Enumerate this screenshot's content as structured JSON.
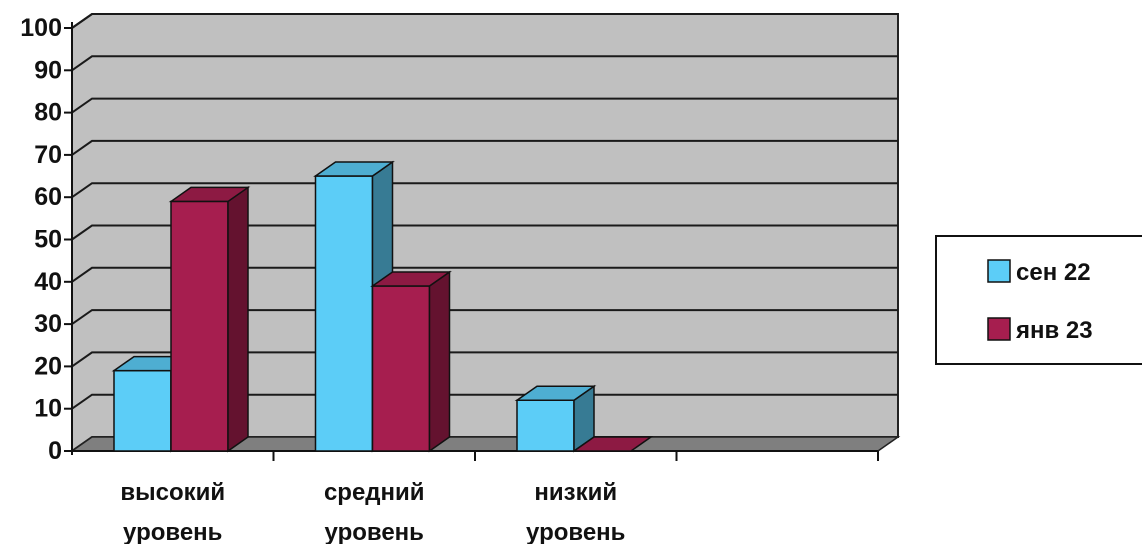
{
  "chart_data": {
    "type": "bar",
    "categories": [
      [
        "высокий",
        "уровень"
      ],
      [
        "средний",
        "уровень"
      ],
      [
        "низкий",
        "уровень"
      ],
      [
        "",
        ""
      ]
    ],
    "series": [
      {
        "name": "сен 22",
        "values": [
          19,
          65,
          12,
          null
        ],
        "color": "#5ccdf7"
      },
      {
        "name": "янв 23",
        "values": [
          59,
          39,
          0,
          null
        ],
        "color": "#a61e4f"
      }
    ],
    "yticks": [
      "0",
      "10",
      "20",
      "30",
      "40",
      "50",
      "60",
      "70",
      "80",
      "90",
      "100"
    ],
    "ylim": [
      0,
      100
    ],
    "grid": true,
    "legend": "right",
    "wall_color": "#c0c0c0",
    "floor_color": "#7f7f7f"
  }
}
